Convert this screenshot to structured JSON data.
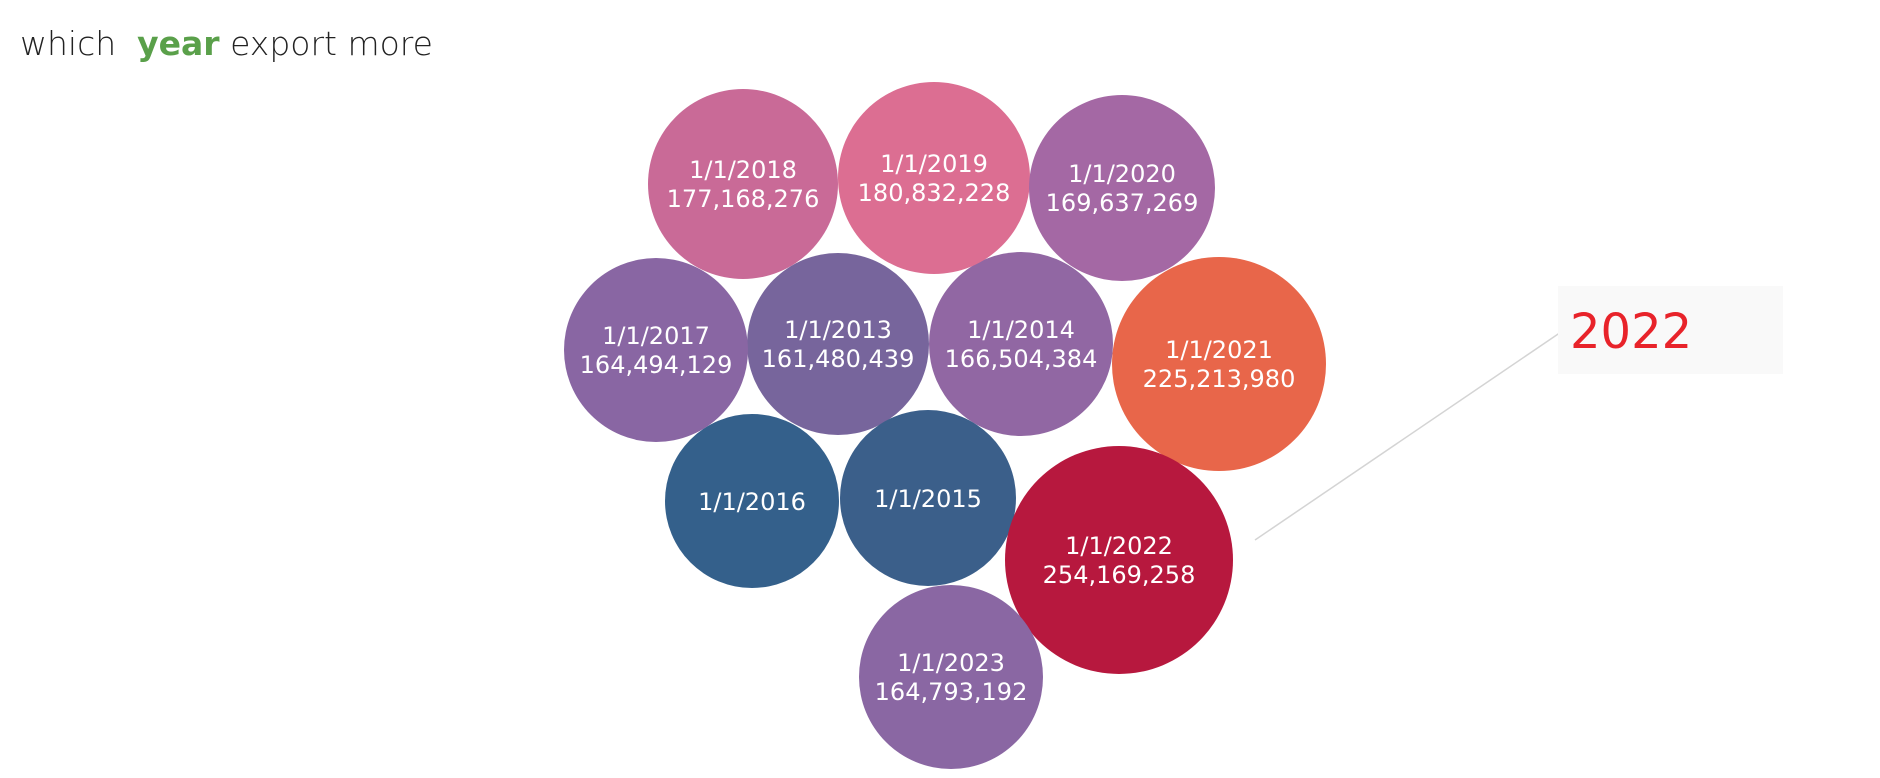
{
  "title": {
    "prefix": "which",
    "accent": "year",
    "suffix": "export more",
    "accent_color": "#5aa04a"
  },
  "annotation": {
    "text": "2022",
    "color": "#e8232a"
  },
  "chart_data": {
    "type": "bubble",
    "title": "which year export more",
    "series": [
      {
        "date": "1/1/2013",
        "value": 161480439,
        "label": "161,480,439",
        "color": "#77659c"
      },
      {
        "date": "1/1/2014",
        "value": 166504384,
        "label": "166,504,384",
        "color": "#9167a3"
      },
      {
        "date": "1/1/2015",
        "value": null,
        "label": "",
        "color": "#3b5f8a"
      },
      {
        "date": "1/1/2016",
        "value": null,
        "label": "",
        "color": "#34608b"
      },
      {
        "date": "1/1/2017",
        "value": 164494129,
        "label": "164,494,129",
        "color": "#8966a3"
      },
      {
        "date": "1/1/2018",
        "value": 177168276,
        "label": "177,168,276",
        "color": "#c96a97"
      },
      {
        "date": "1/1/2019",
        "value": 180832228,
        "label": "180,832,228",
        "color": "#dc6e92"
      },
      {
        "date": "1/1/2020",
        "value": 169637269,
        "label": "169,637,269",
        "color": "#a468a4"
      },
      {
        "date": "1/1/2021",
        "value": 225213980,
        "label": "225,213,980",
        "color": "#e8664a"
      },
      {
        "date": "1/1/2022",
        "value": 254169258,
        "label": "254,169,258",
        "color": "#b7183e"
      },
      {
        "date": "1/1/2023",
        "value": 164793192,
        "label": "164,793,192",
        "color": "#8a67a3"
      }
    ]
  }
}
